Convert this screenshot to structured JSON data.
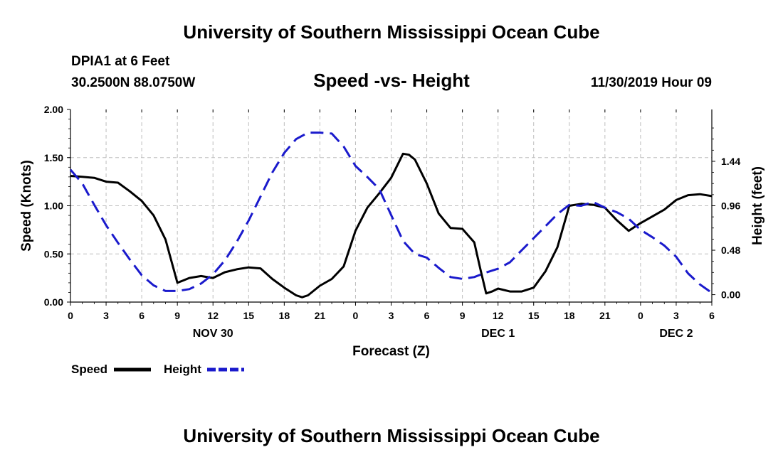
{
  "header": {
    "title": "University of Southern Mississippi Ocean Cube",
    "station": "DPIA1 at 6 Feet",
    "coords": "30.2500N 88.0750W",
    "chart_title": "Speed -vs- Height",
    "datetime": "11/30/2019 Hour 09"
  },
  "footer": {
    "title": "University of Southern Mississippi Ocean Cube"
  },
  "legend": {
    "speed_label": "Speed",
    "height_label": "Height"
  },
  "colors": {
    "speed": "#000000",
    "height": "#1a1acc",
    "grid": "#bdbdbd"
  },
  "chart_data": {
    "type": "line",
    "title": "Speed -vs- Height",
    "xlabel": "Forecast (Z)",
    "ylabel": "Speed (Knots)",
    "y2label": "Height (feet)",
    "xlim": [
      0,
      54
    ],
    "ylim": [
      0,
      2.0
    ],
    "y2lim": [
      -0.08,
      2.0
    ],
    "grid": true,
    "x_ticks": [
      0,
      3,
      6,
      9,
      12,
      15,
      18,
      21,
      24,
      27,
      30,
      33,
      36,
      39,
      42,
      45,
      48,
      51,
      54
    ],
    "x_tick_labels": [
      "0",
      "3",
      "6",
      "9",
      "12",
      "15",
      "18",
      "21",
      "0",
      "3",
      "6",
      "9",
      "12",
      "15",
      "18",
      "21",
      "0",
      "3",
      "6"
    ],
    "y_ticks": [
      0,
      0.5,
      1.0,
      1.5,
      2.0
    ],
    "y_tick_labels": [
      "0.00",
      "0.50",
      "1.00",
      "1.50",
      "2.00"
    ],
    "y2_ticks": [
      0,
      0.48,
      0.96,
      1.44
    ],
    "y2_tick_labels": [
      "0.00",
      "0.48",
      "0.96",
      "1.44"
    ],
    "day_labels": [
      {
        "x": 12,
        "label": "NOV 30"
      },
      {
        "x": 36,
        "label": "DEC 1"
      },
      {
        "x": 51,
        "label": "DEC 2"
      }
    ],
    "legend_position": "bottom-left",
    "series": [
      {
        "name": "Speed",
        "axis": "left",
        "style": "solid",
        "x": [
          0,
          1,
          2,
          3,
          4,
          5,
          6,
          7,
          8,
          9,
          10,
          11,
          12,
          13,
          14,
          15,
          16,
          17,
          18,
          19,
          19.5,
          20,
          21,
          22,
          23,
          24,
          25,
          26,
          27,
          28,
          28.5,
          29,
          30,
          31,
          32,
          33,
          34,
          34.5,
          35,
          35.5,
          36,
          37,
          38,
          39,
          40,
          41,
          42,
          43,
          44,
          45,
          46,
          47,
          48,
          49,
          50,
          51,
          52,
          53,
          54
        ],
        "values": [
          1.31,
          1.3,
          1.29,
          1.25,
          1.24,
          1.15,
          1.05,
          0.9,
          0.65,
          0.2,
          0.25,
          0.27,
          0.25,
          0.31,
          0.34,
          0.36,
          0.35,
          0.24,
          0.15,
          0.07,
          0.05,
          0.07,
          0.17,
          0.24,
          0.37,
          0.74,
          0.98,
          1.13,
          1.29,
          1.54,
          1.53,
          1.48,
          1.23,
          0.92,
          0.77,
          0.76,
          0.62,
          0.35,
          0.09,
          0.11,
          0.14,
          0.11,
          0.11,
          0.15,
          0.32,
          0.57,
          1.0,
          1.02,
          1.01,
          0.98,
          0.85,
          0.74,
          0.82,
          0.89,
          0.96,
          1.06,
          1.11,
          1.12,
          1.1
        ]
      },
      {
        "name": "Height",
        "axis": "right",
        "style": "dashed",
        "x": [
          0,
          1,
          2,
          3,
          4,
          5,
          6,
          7,
          8,
          9,
          10,
          11,
          12,
          13,
          14,
          15,
          16,
          17,
          18,
          19,
          20,
          21,
          22,
          23,
          24,
          25,
          26,
          27,
          28,
          29,
          30,
          31,
          32,
          33,
          34,
          35,
          36,
          37,
          38,
          39,
          40,
          41,
          42,
          43,
          44,
          45,
          46,
          47,
          48,
          49,
          50,
          51,
          52,
          53,
          54
        ],
        "values": [
          1.35,
          1.2,
          0.97,
          0.75,
          0.56,
          0.38,
          0.21,
          0.1,
          0.04,
          0.04,
          0.06,
          0.12,
          0.22,
          0.37,
          0.57,
          0.8,
          1.06,
          1.32,
          1.53,
          1.68,
          1.75,
          1.75,
          1.74,
          1.6,
          1.39,
          1.27,
          1.14,
          0.86,
          0.58,
          0.44,
          0.4,
          0.29,
          0.19,
          0.17,
          0.19,
          0.24,
          0.28,
          0.35,
          0.48,
          0.61,
          0.74,
          0.87,
          0.97,
          0.96,
          1.0,
          0.94,
          0.89,
          0.82,
          0.7,
          0.62,
          0.53,
          0.41,
          0.23,
          0.11,
          0.02
        ]
      }
    ]
  }
}
